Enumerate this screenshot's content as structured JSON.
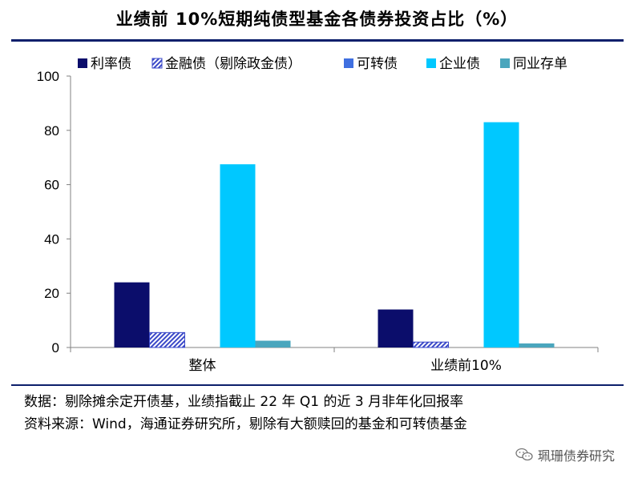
{
  "header": {
    "title": "业绩前 10%短期纯债型基金各债券投资占比（%）"
  },
  "chart_data": {
    "type": "bar",
    "categories": [
      "整体",
      "业绩前10%"
    ],
    "series": [
      {
        "name": "利率债",
        "values": [
          24,
          14
        ],
        "color": "#0b0d6b",
        "pattern": "solid"
      },
      {
        "name": "金融债（剔除政金债）",
        "values": [
          5.5,
          2
        ],
        "color": "#3a48c8",
        "pattern": "hatch"
      },
      {
        "name": "可转债",
        "values": [
          0,
          0
        ],
        "color": "#3f6fe0",
        "pattern": "solid"
      },
      {
        "name": "企业债",
        "values": [
          67.5,
          83
        ],
        "color": "#00c8ff",
        "pattern": "solid"
      },
      {
        "name": "同业存单",
        "values": [
          2.5,
          1.5
        ],
        "color": "#4aa6bd",
        "pattern": "solid"
      }
    ],
    "yticks": [
      0,
      20,
      40,
      60,
      80,
      100
    ],
    "ylim": [
      0,
      100
    ],
    "legend_position": "top"
  },
  "footer": {
    "note_1": "数据：剔除摊余定开债基，业绩指截止 22 年 Q1 的近 3 月非年化回报率",
    "note_2": "资料来源：Wind，海通证券研究所，剔除有大额赎回的基金和可转债基金"
  },
  "watermark": {
    "text": "珮珊债券研究",
    "icon": "wechat-icon"
  }
}
